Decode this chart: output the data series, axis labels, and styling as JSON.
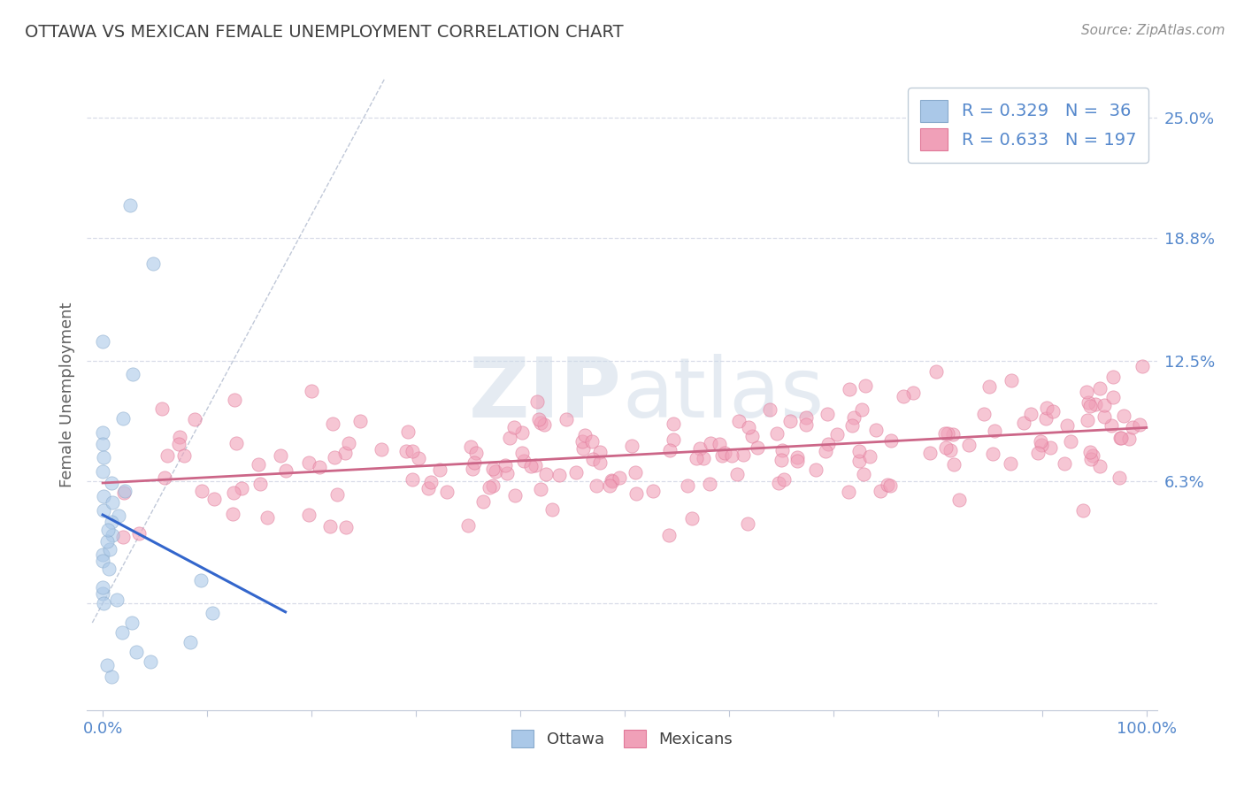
{
  "title": "OTTAWA VS MEXICAN FEMALE UNEMPLOYMENT CORRELATION CHART",
  "source": "Source: ZipAtlas.com",
  "ylabel": "Female Unemployment",
  "ottawa_color": "#aac8e8",
  "ottawa_edge_color": "#88aacc",
  "mexican_color": "#f0a0b8",
  "mexican_edge_color": "#e07898",
  "regression_line_color_ottawa": "#3366cc",
  "regression_line_color_mexican": "#cc6688",
  "diagonal_color": "#c0c8d8",
  "watermark_zip": "ZIP",
  "watermark_atlas": "atlas",
  "legend_R_ottawa": "0.329",
  "legend_N_ottawa": "36",
  "legend_R_mexican": "0.633",
  "legend_N_mexican": "197",
  "title_color": "#404040",
  "axis_color": "#5588cc",
  "grid_color": "#d8dce8",
  "background_color": "#ffffff",
  "title_fontsize": 14,
  "source_fontsize": 11,
  "tick_fontsize": 13,
  "ylabel_fontsize": 13,
  "legend_fontsize": 14,
  "scatter_size": 120,
  "scatter_alpha": 0.6
}
